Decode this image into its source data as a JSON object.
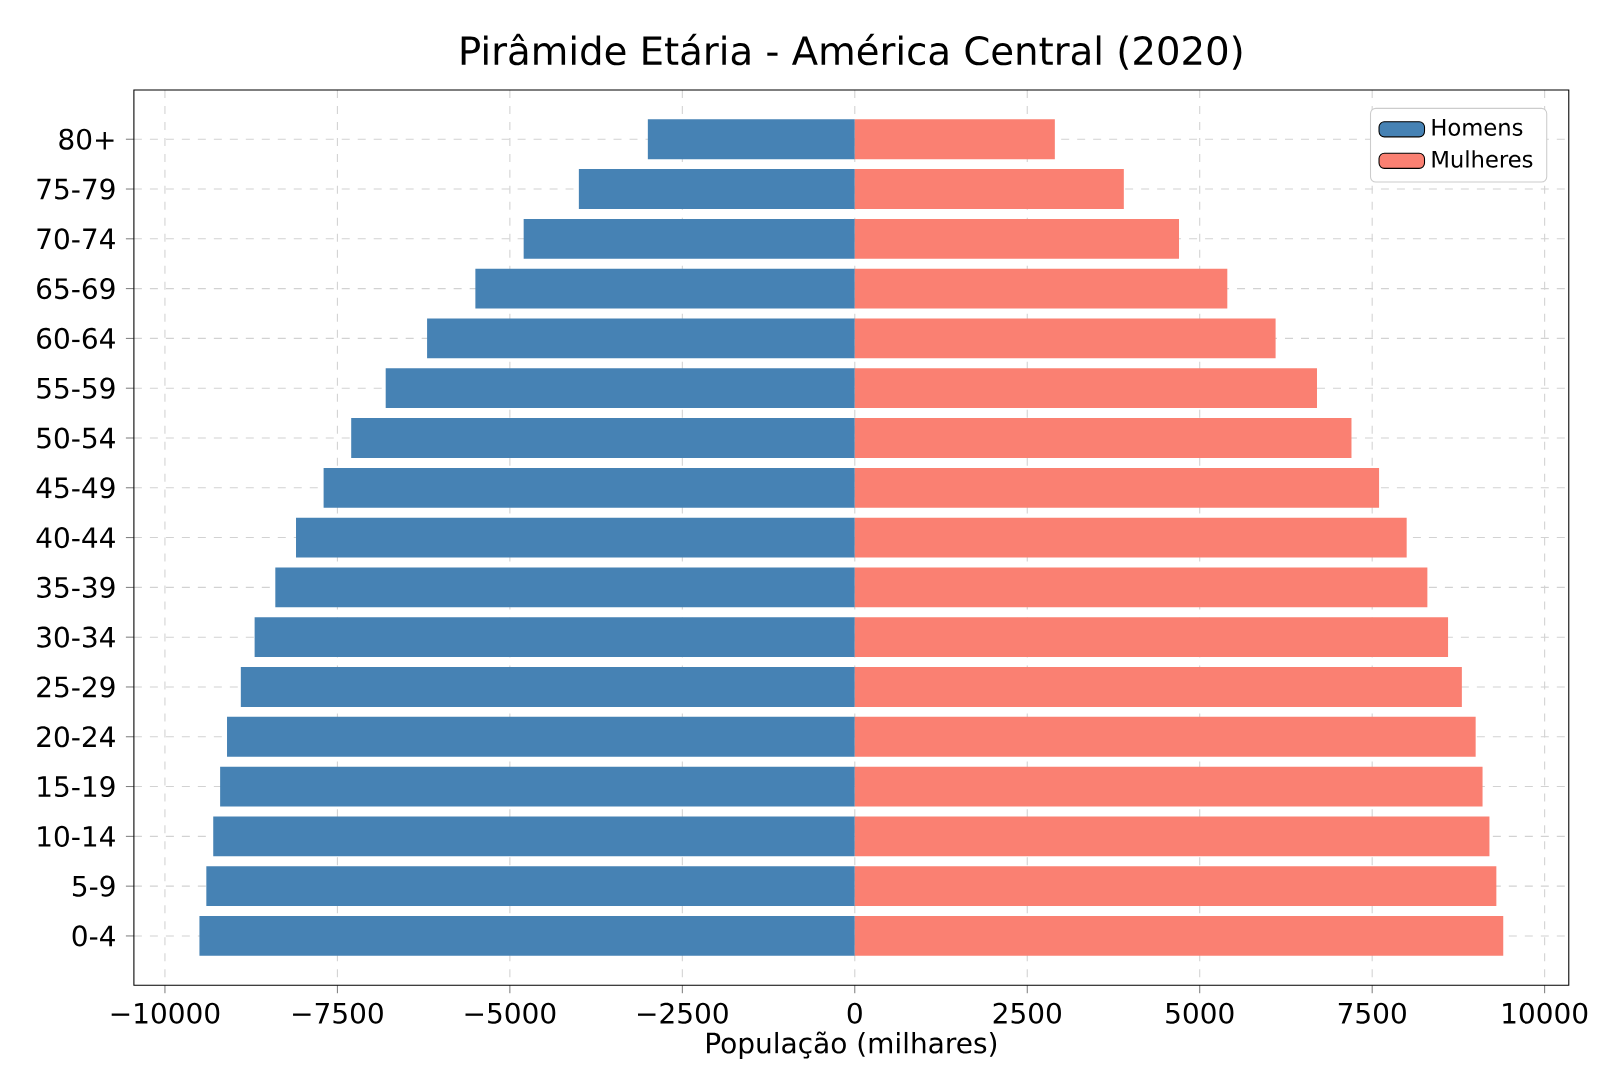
{
  "chart_data": {
    "type": "bar",
    "orientation": "horizontal",
    "title": "Pirâmide Etária - América Central (2020)",
    "xlabel": "População (milhares)",
    "categories": [
      "80+",
      "75-79",
      "70-74",
      "65-69",
      "60-64",
      "55-59",
      "50-54",
      "45-49",
      "40-44",
      "35-39",
      "30-34",
      "25-29",
      "20-24",
      "15-19",
      "10-14",
      "5-9",
      "0-4"
    ],
    "series": [
      {
        "name": "Homens",
        "color": "#4682b4",
        "values": [
          -3000,
          -4000,
          -4800,
          -5500,
          -6200,
          -6800,
          -7300,
          -7700,
          -8100,
          -8400,
          -8700,
          -8900,
          -9100,
          -9200,
          -9300,
          -9400,
          -9500
        ]
      },
      {
        "name": "Mulheres",
        "color": "#fa8072",
        "values": [
          2900,
          3900,
          4700,
          5400,
          6100,
          6700,
          7200,
          7600,
          8000,
          8300,
          8600,
          8800,
          9000,
          9100,
          9200,
          9300,
          9400
        ]
      }
    ],
    "xlim": [
      -10450,
      10350
    ],
    "xticks": [
      {
        "value": -10000,
        "label": "−10000"
      },
      {
        "value": -7500,
        "label": "−7500"
      },
      {
        "value": -5000,
        "label": "−5000"
      },
      {
        "value": -2500,
        "label": "−2500"
      },
      0,
      2500,
      5000,
      7500,
      10000
    ],
    "stacked": true,
    "grid": true,
    "legend": "top right"
  }
}
